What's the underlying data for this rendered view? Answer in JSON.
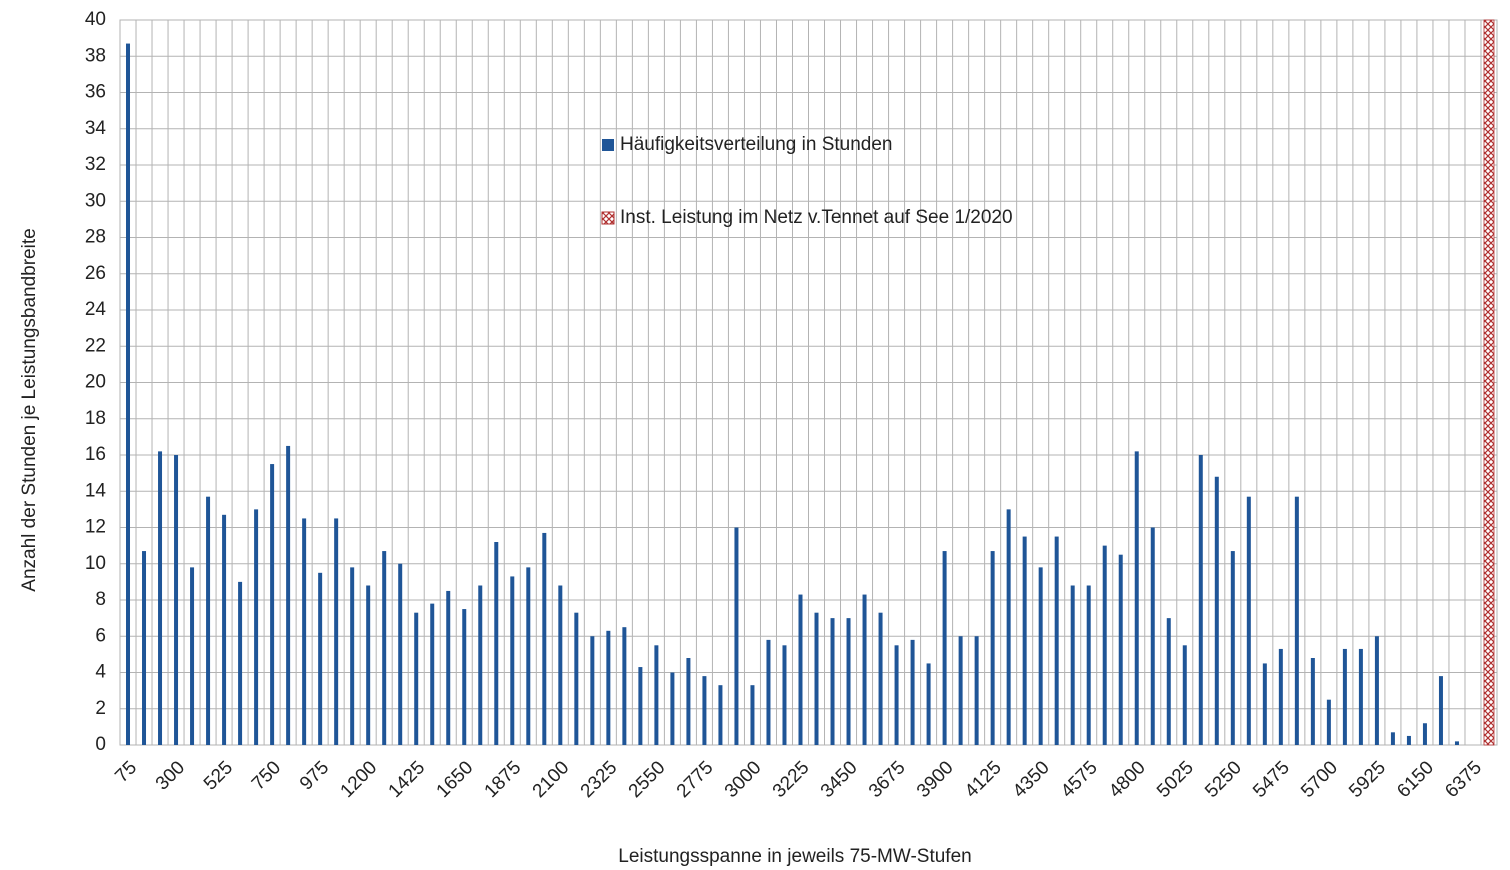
{
  "chart_data": {
    "type": "bar",
    "y_label": "Anzahl der Stunden je Leistungsbandbreite",
    "x_label": "Leistungsspanne in jeweils 75-MW-Stufen",
    "categories": [
      75,
      null,
      null,
      300,
      null,
      null,
      525,
      null,
      null,
      750,
      null,
      null,
      975,
      null,
      null,
      1200,
      null,
      null,
      1425,
      null,
      null,
      1650,
      null,
      null,
      1875,
      null,
      null,
      2100,
      null,
      null,
      2325,
      null,
      null,
      2550,
      null,
      null,
      2775,
      null,
      null,
      3000,
      null,
      null,
      3225,
      null,
      null,
      3450,
      null,
      null,
      3675,
      null,
      null,
      3900,
      null,
      null,
      4125,
      null,
      null,
      4350,
      null,
      null,
      4575,
      null,
      null,
      4800,
      null,
      null,
      5025,
      null,
      null,
      5250,
      null,
      null,
      5475,
      null,
      null,
      5700,
      null,
      null,
      5925,
      null,
      null,
      6150,
      null,
      null,
      6375,
      null
    ],
    "series": [
      {
        "name": "Häufigkeitsverteilung in Stunden",
        "color": "#1f5597",
        "pattern": "solid",
        "values": [
          38.7,
          10.7,
          16.2,
          16,
          9.8,
          13.7,
          12.7,
          9,
          13,
          15.5,
          16.5,
          12.5,
          9.5,
          12.5,
          9.8,
          8.8,
          10.7,
          10,
          7.3,
          7.8,
          8.5,
          7.5,
          8.8,
          11.2,
          9.3,
          9.8,
          11.7,
          8.8,
          7.3,
          6,
          6.3,
          6.5,
          4.3,
          5.5,
          4,
          4.8,
          3.8,
          3.3,
          12,
          3.3,
          5.8,
          5.5,
          8.3,
          7.3,
          7,
          7,
          8.3,
          7.3,
          5.5,
          5.8,
          4.5,
          10.7,
          6,
          6,
          10.7,
          13,
          11.5,
          9.8,
          11.5,
          8.8,
          8.8,
          11,
          10.5,
          16.2,
          12,
          7,
          5.5,
          16,
          14.8,
          10.7,
          13.7,
          4.5,
          5.3,
          13.7,
          4.8,
          2.5,
          5.3,
          5.3,
          6,
          0.7,
          0.5,
          1.2,
          3.8,
          0.2,
          null,
          null
        ]
      },
      {
        "name": "Inst. Leistung im Netz v.Tennet auf See 1/2020",
        "color": "#b03030",
        "pattern": "crosshatch",
        "values": [
          null,
          null,
          null,
          null,
          null,
          null,
          null,
          null,
          null,
          null,
          null,
          null,
          null,
          null,
          null,
          null,
          null,
          null,
          null,
          null,
          null,
          null,
          null,
          null,
          null,
          null,
          null,
          null,
          null,
          null,
          null,
          null,
          null,
          null,
          null,
          null,
          null,
          null,
          null,
          null,
          null,
          null,
          null,
          null,
          null,
          null,
          null,
          null,
          null,
          null,
          null,
          null,
          null,
          null,
          null,
          null,
          null,
          null,
          null,
          null,
          null,
          null,
          null,
          null,
          null,
          null,
          null,
          null,
          null,
          null,
          null,
          null,
          null,
          null,
          null,
          null,
          null,
          null,
          null,
          null,
          null,
          null,
          null,
          null,
          null,
          40
        ]
      }
    ],
    "ylim": [
      0,
      40
    ],
    "yticks": [
      0,
      2,
      4,
      6,
      8,
      10,
      12,
      14,
      16,
      18,
      20,
      22,
      24,
      26,
      28,
      30,
      32,
      34,
      36,
      38,
      40
    ],
    "grid": true
  }
}
